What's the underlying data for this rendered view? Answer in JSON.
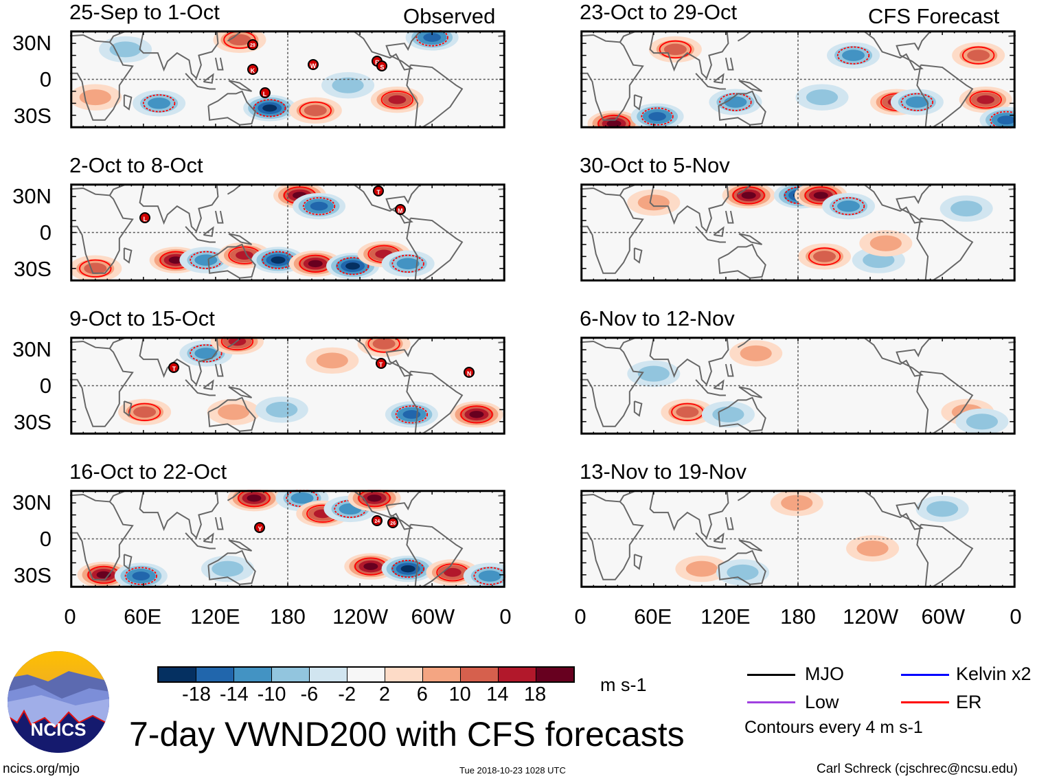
{
  "headers": {
    "observed": "Observed",
    "forecast": "CFS Forecast"
  },
  "y_labels": [
    "30N",
    "0",
    "30S"
  ],
  "x_labels": [
    "0",
    "60E",
    "120E",
    "180",
    "120W",
    "60W",
    "0"
  ],
  "x_label_lons": [
    0,
    60,
    120,
    180,
    240,
    300,
    360
  ],
  "colors": {
    "levels": [
      "#053061",
      "#2166ac",
      "#4393c3",
      "#92c5de",
      "#d1e5f0",
      "#f7f7f7",
      "#fddbc7",
      "#f4a582",
      "#d6604d",
      "#b2182b",
      "#67001f"
    ],
    "contour": "#ff0000",
    "coast": "#666666"
  },
  "colorbar": {
    "labels": [
      "-18",
      "-14",
      "-10",
      "-6",
      "-2",
      "2",
      "6",
      "10",
      "14",
      "18"
    ],
    "units": "m s-1"
  },
  "panels": [
    {
      "title": "25-Sep to 1-Oct",
      "anoms": [
        [
          165,
          -24,
          -18
        ],
        [
          73,
          -20,
          -10
        ],
        [
          271,
          -17,
          14
        ],
        [
          203,
          -26,
          10
        ],
        [
          300,
          35,
          -14
        ],
        [
          140,
          33,
          10
        ],
        [
          20,
          -15,
          6
        ],
        [
          45,
          25,
          -6
        ],
        [
          230,
          -5,
          -6
        ]
      ],
      "storms": [
        [
          151,
          28,
          "29"
        ],
        [
          151,
          8,
          "K"
        ],
        [
          161,
          -11,
          "L"
        ],
        [
          201,
          12,
          "W"
        ],
        [
          254,
          15,
          "R"
        ],
        [
          258,
          11,
          "S"
        ]
      ]
    },
    {
      "title": "2-Oct to 8-Oct",
      "anoms": [
        [
          87,
          -23,
          18
        ],
        [
          112,
          -23,
          -10
        ],
        [
          144,
          -19,
          14
        ],
        [
          172,
          -23,
          -18
        ],
        [
          203,
          -26,
          18
        ],
        [
          234,
          -28,
          -18
        ],
        [
          260,
          -18,
          14
        ],
        [
          280,
          -26,
          -10
        ],
        [
          190,
          31,
          18
        ],
        [
          206,
          22,
          -14
        ],
        [
          20,
          -30,
          10
        ]
      ],
      "storms": [
        [
          62,
          12,
          "L"
        ],
        [
          255,
          34,
          "T"
        ],
        [
          273,
          19,
          "M"
        ]
      ]
    },
    {
      "title": "9-Oct to 15-Oct",
      "anoms": [
        [
          337,
          -24,
          18
        ],
        [
          283,
          -24,
          -14
        ],
        [
          61,
          -22,
          10
        ],
        [
          112,
          27,
          -10
        ],
        [
          138,
          37,
          14
        ],
        [
          217,
          21,
          6
        ],
        [
          135,
          -22,
          6
        ],
        [
          175,
          -20,
          -6
        ],
        [
          260,
          35,
          10
        ]
      ],
      "storms": [
        [
          86,
          15,
          "T"
        ],
        [
          257,
          18,
          "T"
        ],
        [
          330,
          11,
          "N"
        ]
      ]
    },
    {
      "title": "16-Oct to 22-Oct",
      "anoms": [
        [
          27,
          -30,
          18
        ],
        [
          58,
          -31,
          -14
        ],
        [
          152,
          34,
          18
        ],
        [
          192,
          34,
          -10
        ],
        [
          209,
          21,
          14
        ],
        [
          232,
          25,
          -10
        ],
        [
          249,
          -23,
          18
        ],
        [
          280,
          -25,
          -18
        ],
        [
          317,
          -28,
          14
        ],
        [
          348,
          -31,
          -10
        ],
        [
          252,
          34,
          18
        ],
        [
          130,
          -25,
          -6
        ]
      ],
      "storms": [
        [
          157,
          9,
          "Y"
        ],
        [
          254,
          15,
          "24"
        ],
        [
          267,
          13,
          "26"
        ]
      ]
    },
    {
      "title": "23-Oct to 29-Oct",
      "anoms": [
        [
          27,
          -37,
          18
        ],
        [
          63,
          -31,
          -14
        ],
        [
          128,
          -19,
          -10
        ],
        [
          262,
          -19,
          14
        ],
        [
          279,
          -19,
          -10
        ],
        [
          336,
          -17,
          14
        ],
        [
          353,
          -34,
          -14
        ],
        [
          78,
          25,
          10
        ],
        [
          226,
          20,
          -10
        ],
        [
          330,
          20,
          10
        ],
        [
          200,
          -15,
          -6
        ]
      ],
      "storms": []
    },
    {
      "title": "30-Oct to 5-Nov",
      "anoms": [
        [
          139,
          31,
          18
        ],
        [
          182,
          31,
          -18
        ],
        [
          199,
          31,
          18
        ],
        [
          222,
          22,
          -10
        ],
        [
          202,
          -20,
          10
        ],
        [
          247,
          -23,
          -6
        ],
        [
          253,
          -9,
          6
        ],
        [
          60,
          25,
          6
        ],
        [
          320,
          20,
          -6
        ]
      ],
      "storms": []
    },
    {
      "title": "6-Nov to 12-Nov",
      "anoms": [
        [
          88,
          -22,
          10
        ],
        [
          122,
          -24,
          -6
        ],
        [
          145,
          27,
          6
        ],
        [
          321,
          -22,
          6
        ],
        [
          333,
          -30,
          -6
        ],
        [
          60,
          10,
          -6
        ]
      ],
      "storms": []
    },
    {
      "title": "13-Nov to 19-Nov",
      "anoms": [
        [
          179,
          30,
          6
        ],
        [
          242,
          -8,
          6
        ],
        [
          100,
          -25,
          6
        ],
        [
          134,
          -28,
          -6
        ],
        [
          300,
          25,
          -6
        ]
      ],
      "storms": []
    }
  ],
  "legend": {
    "items": [
      {
        "label": "MJO",
        "color": "#000000"
      },
      {
        "label": "Kelvin x2",
        "color": "#0000ff"
      },
      {
        "label": "Low",
        "color": "#a040e0"
      },
      {
        "label": "ER",
        "color": "#ff0000"
      }
    ],
    "note": "Contours every 4 m s-1"
  },
  "footer": {
    "title": "7-day VWND200 with CFS forecasts",
    "url": "ncics.org/mjo",
    "timestamp": "Tue 2018-10-23 1028 UTC",
    "credit": "Carl Schreck (cjschrec@ncsu.edu)",
    "logo_text": "NCICS"
  }
}
